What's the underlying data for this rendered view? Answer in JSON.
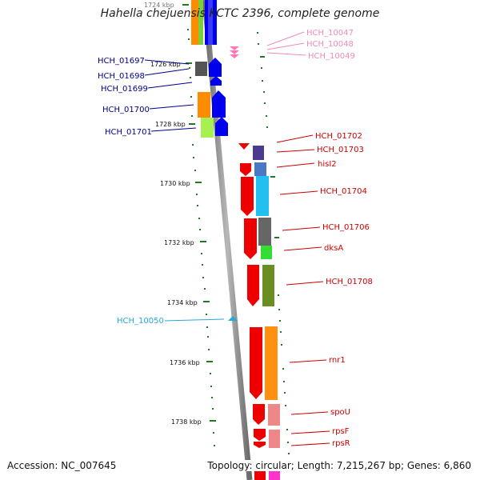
{
  "title": "Hahella chejuensis KCTC 2396, complete genome",
  "footer": {
    "accession": "Accession: NC_007645",
    "summary": "Topology: circular; Length: 7,215,267 bp; Genes: 6,860"
  },
  "ticks": [
    "1724 kbp",
    "1726 kbp",
    "1728 kbp",
    "1730 kbp",
    "1732 kbp",
    "1734 kbp",
    "1736 kbp",
    "1738 kbp"
  ],
  "colors": {
    "pink": "#f08ab8",
    "blue": "#00008b",
    "cyan": "#22aadd",
    "red": "#cc0000",
    "tick": "#1e7b1e"
  },
  "labels": {
    "left": [
      {
        "text": "HCH_01697",
        "color": "blue"
      },
      {
        "text": "HCH_01698",
        "color": "blue"
      },
      {
        "text": "HCH_01699",
        "color": "blue"
      },
      {
        "text": "HCH_01700",
        "color": "blue"
      },
      {
        "text": "HCH_01701",
        "color": "blue"
      },
      {
        "text": "HCH_10050",
        "color": "cyan"
      }
    ],
    "right": [
      {
        "text": "HCH_10047",
        "color": "pink"
      },
      {
        "text": "HCH_10048",
        "color": "pink"
      },
      {
        "text": "HCH_10049",
        "color": "pink"
      },
      {
        "text": "HCH_01702",
        "color": "red"
      },
      {
        "text": "HCH_01703",
        "color": "red"
      },
      {
        "text": "hisI2",
        "color": "red"
      },
      {
        "text": "HCH_01704",
        "color": "red"
      },
      {
        "text": "HCH_01706",
        "color": "red"
      },
      {
        "text": "dksA",
        "color": "red"
      },
      {
        "text": "HCH_01708",
        "color": "red"
      },
      {
        "text": "rnr1",
        "color": "red"
      },
      {
        "text": "spoU",
        "color": "red"
      },
      {
        "text": "rpsF",
        "color": "red"
      },
      {
        "text": "rpsR",
        "color": "red"
      }
    ]
  }
}
